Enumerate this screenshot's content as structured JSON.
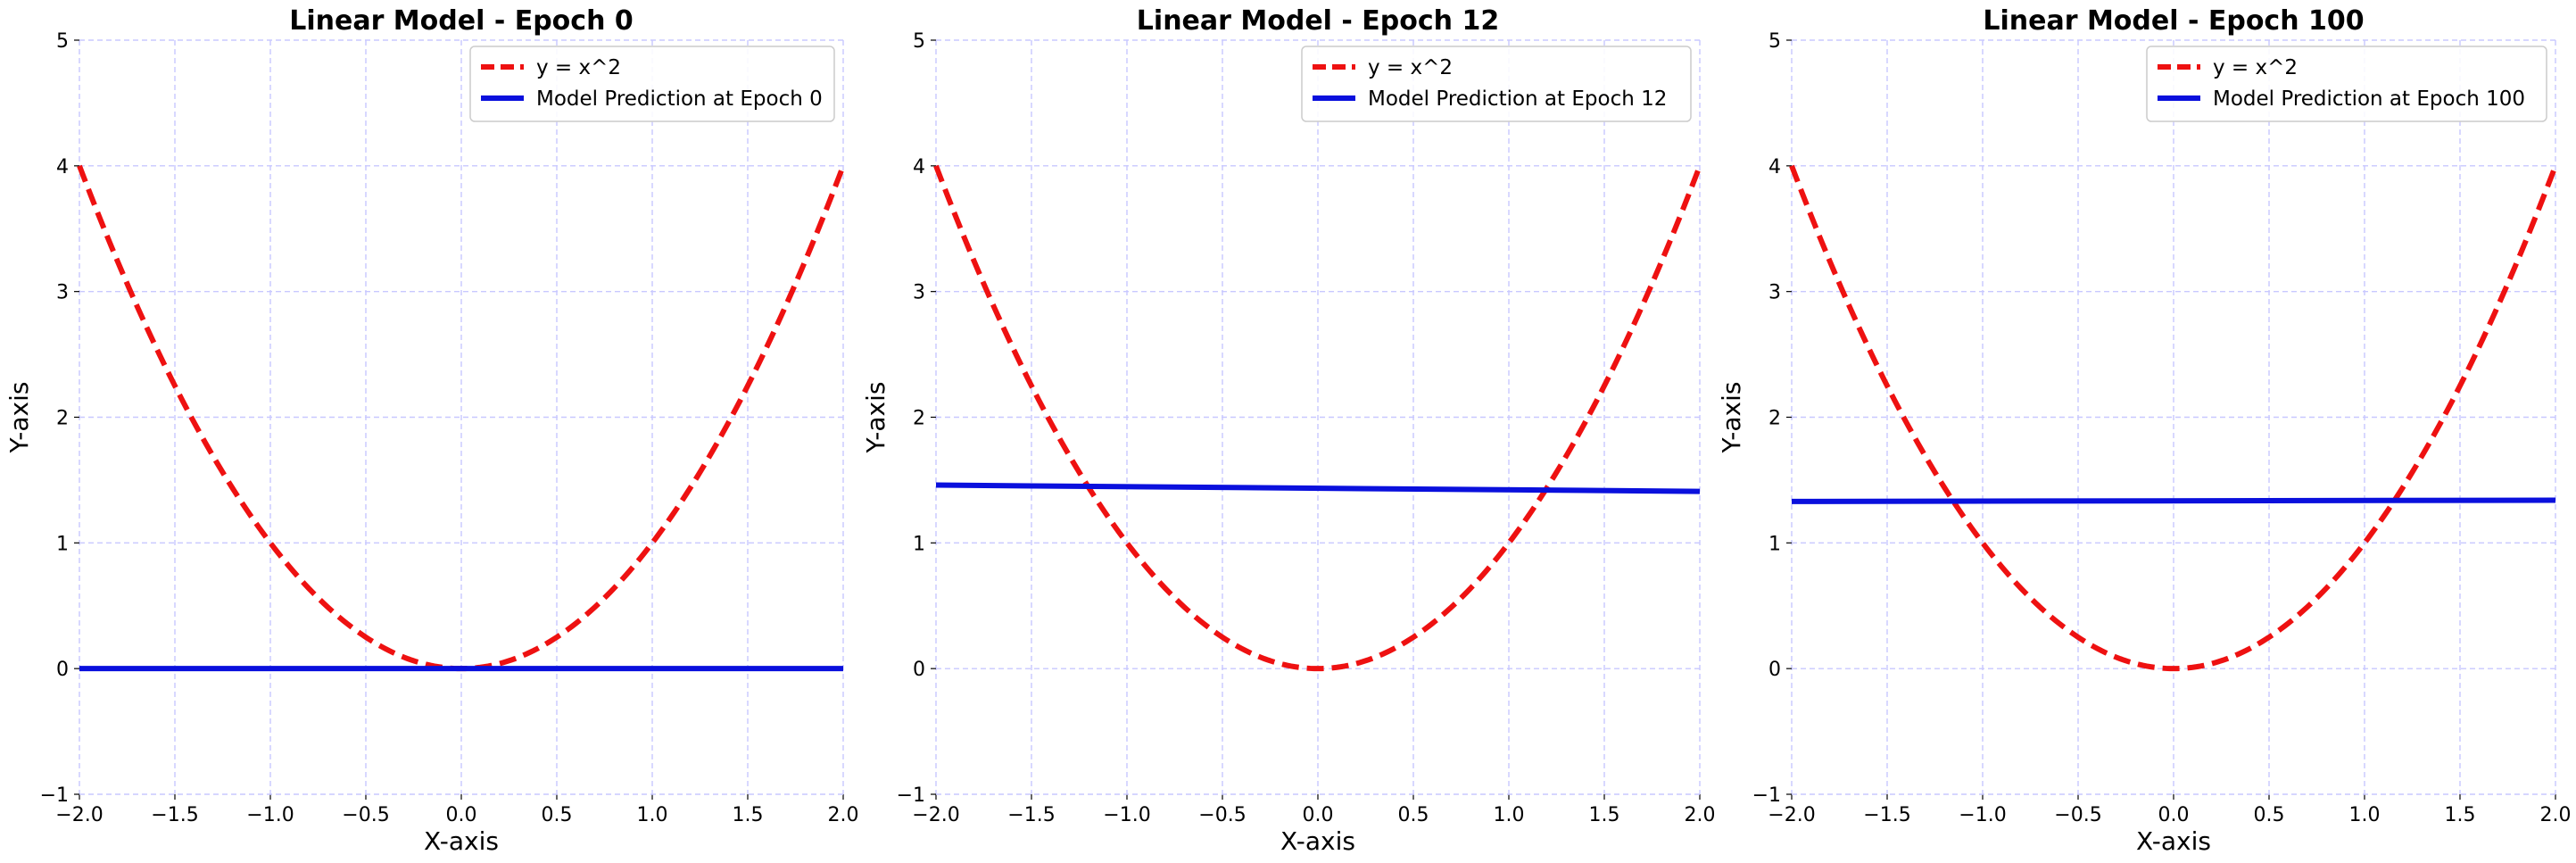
{
  "colors": {
    "curve": "#ee1111",
    "prediction": "#0a10dd",
    "grid": "#c8c8ff",
    "legend_border": "#cccccc"
  },
  "chart_data": [
    {
      "type": "line",
      "title": "Linear Model - Epoch 0",
      "xlabel": "X-axis",
      "ylabel": "Y-axis",
      "xlim": [
        -2.0,
        2.0
      ],
      "ylim": [
        -1,
        5
      ],
      "xticks": [
        "−2.0",
        "−1.5",
        "−1.0",
        "−0.5",
        "0.0",
        "0.5",
        "1.0",
        "1.5",
        "2.0"
      ],
      "yticks": [
        "−1",
        "0",
        "1",
        "2",
        "3",
        "4",
        "5"
      ],
      "grid": true,
      "legend_position": "top-right",
      "series": [
        {
          "name": "y = x^2",
          "style": "dashed",
          "color": "red",
          "function": "x^2"
        },
        {
          "name": "Model Prediction at Epoch 0",
          "style": "solid",
          "color": "blue",
          "x": [
            -2.0,
            2.0
          ],
          "y": [
            0.0,
            0.0
          ]
        }
      ]
    },
    {
      "type": "line",
      "title": "Linear Model - Epoch 12",
      "xlabel": "X-axis",
      "ylabel": "Y-axis",
      "xlim": [
        -2.0,
        2.0
      ],
      "ylim": [
        -1,
        5
      ],
      "xticks": [
        "−2.0",
        "−1.5",
        "−1.0",
        "−0.5",
        "0.0",
        "0.5",
        "1.0",
        "1.5",
        "2.0"
      ],
      "yticks": [
        "−1",
        "0",
        "1",
        "2",
        "3",
        "4",
        "5"
      ],
      "grid": true,
      "legend_position": "top-right",
      "series": [
        {
          "name": "y = x^2",
          "style": "dashed",
          "color": "red",
          "function": "x^2"
        },
        {
          "name": "Model Prediction at Epoch 12",
          "style": "solid",
          "color": "blue",
          "x": [
            -2.0,
            2.0
          ],
          "y": [
            1.46,
            1.41
          ]
        }
      ]
    },
    {
      "type": "line",
      "title": "Linear Model - Epoch 100",
      "xlabel": "X-axis",
      "ylabel": "Y-axis",
      "xlim": [
        -2.0,
        2.0
      ],
      "ylim": [
        -1,
        5
      ],
      "xticks": [
        "−2.0",
        "−1.5",
        "−1.0",
        "−0.5",
        "0.0",
        "0.5",
        "1.0",
        "1.5",
        "2.0"
      ],
      "yticks": [
        "−1",
        "0",
        "1",
        "2",
        "3",
        "4",
        "5"
      ],
      "grid": true,
      "legend_position": "top-right",
      "series": [
        {
          "name": "y = x^2",
          "style": "dashed",
          "color": "red",
          "function": "x^2"
        },
        {
          "name": "Model Prediction at Epoch 100",
          "style": "solid",
          "color": "blue",
          "x": [
            -2.0,
            2.0
          ],
          "y": [
            1.33,
            1.34
          ]
        }
      ]
    }
  ]
}
